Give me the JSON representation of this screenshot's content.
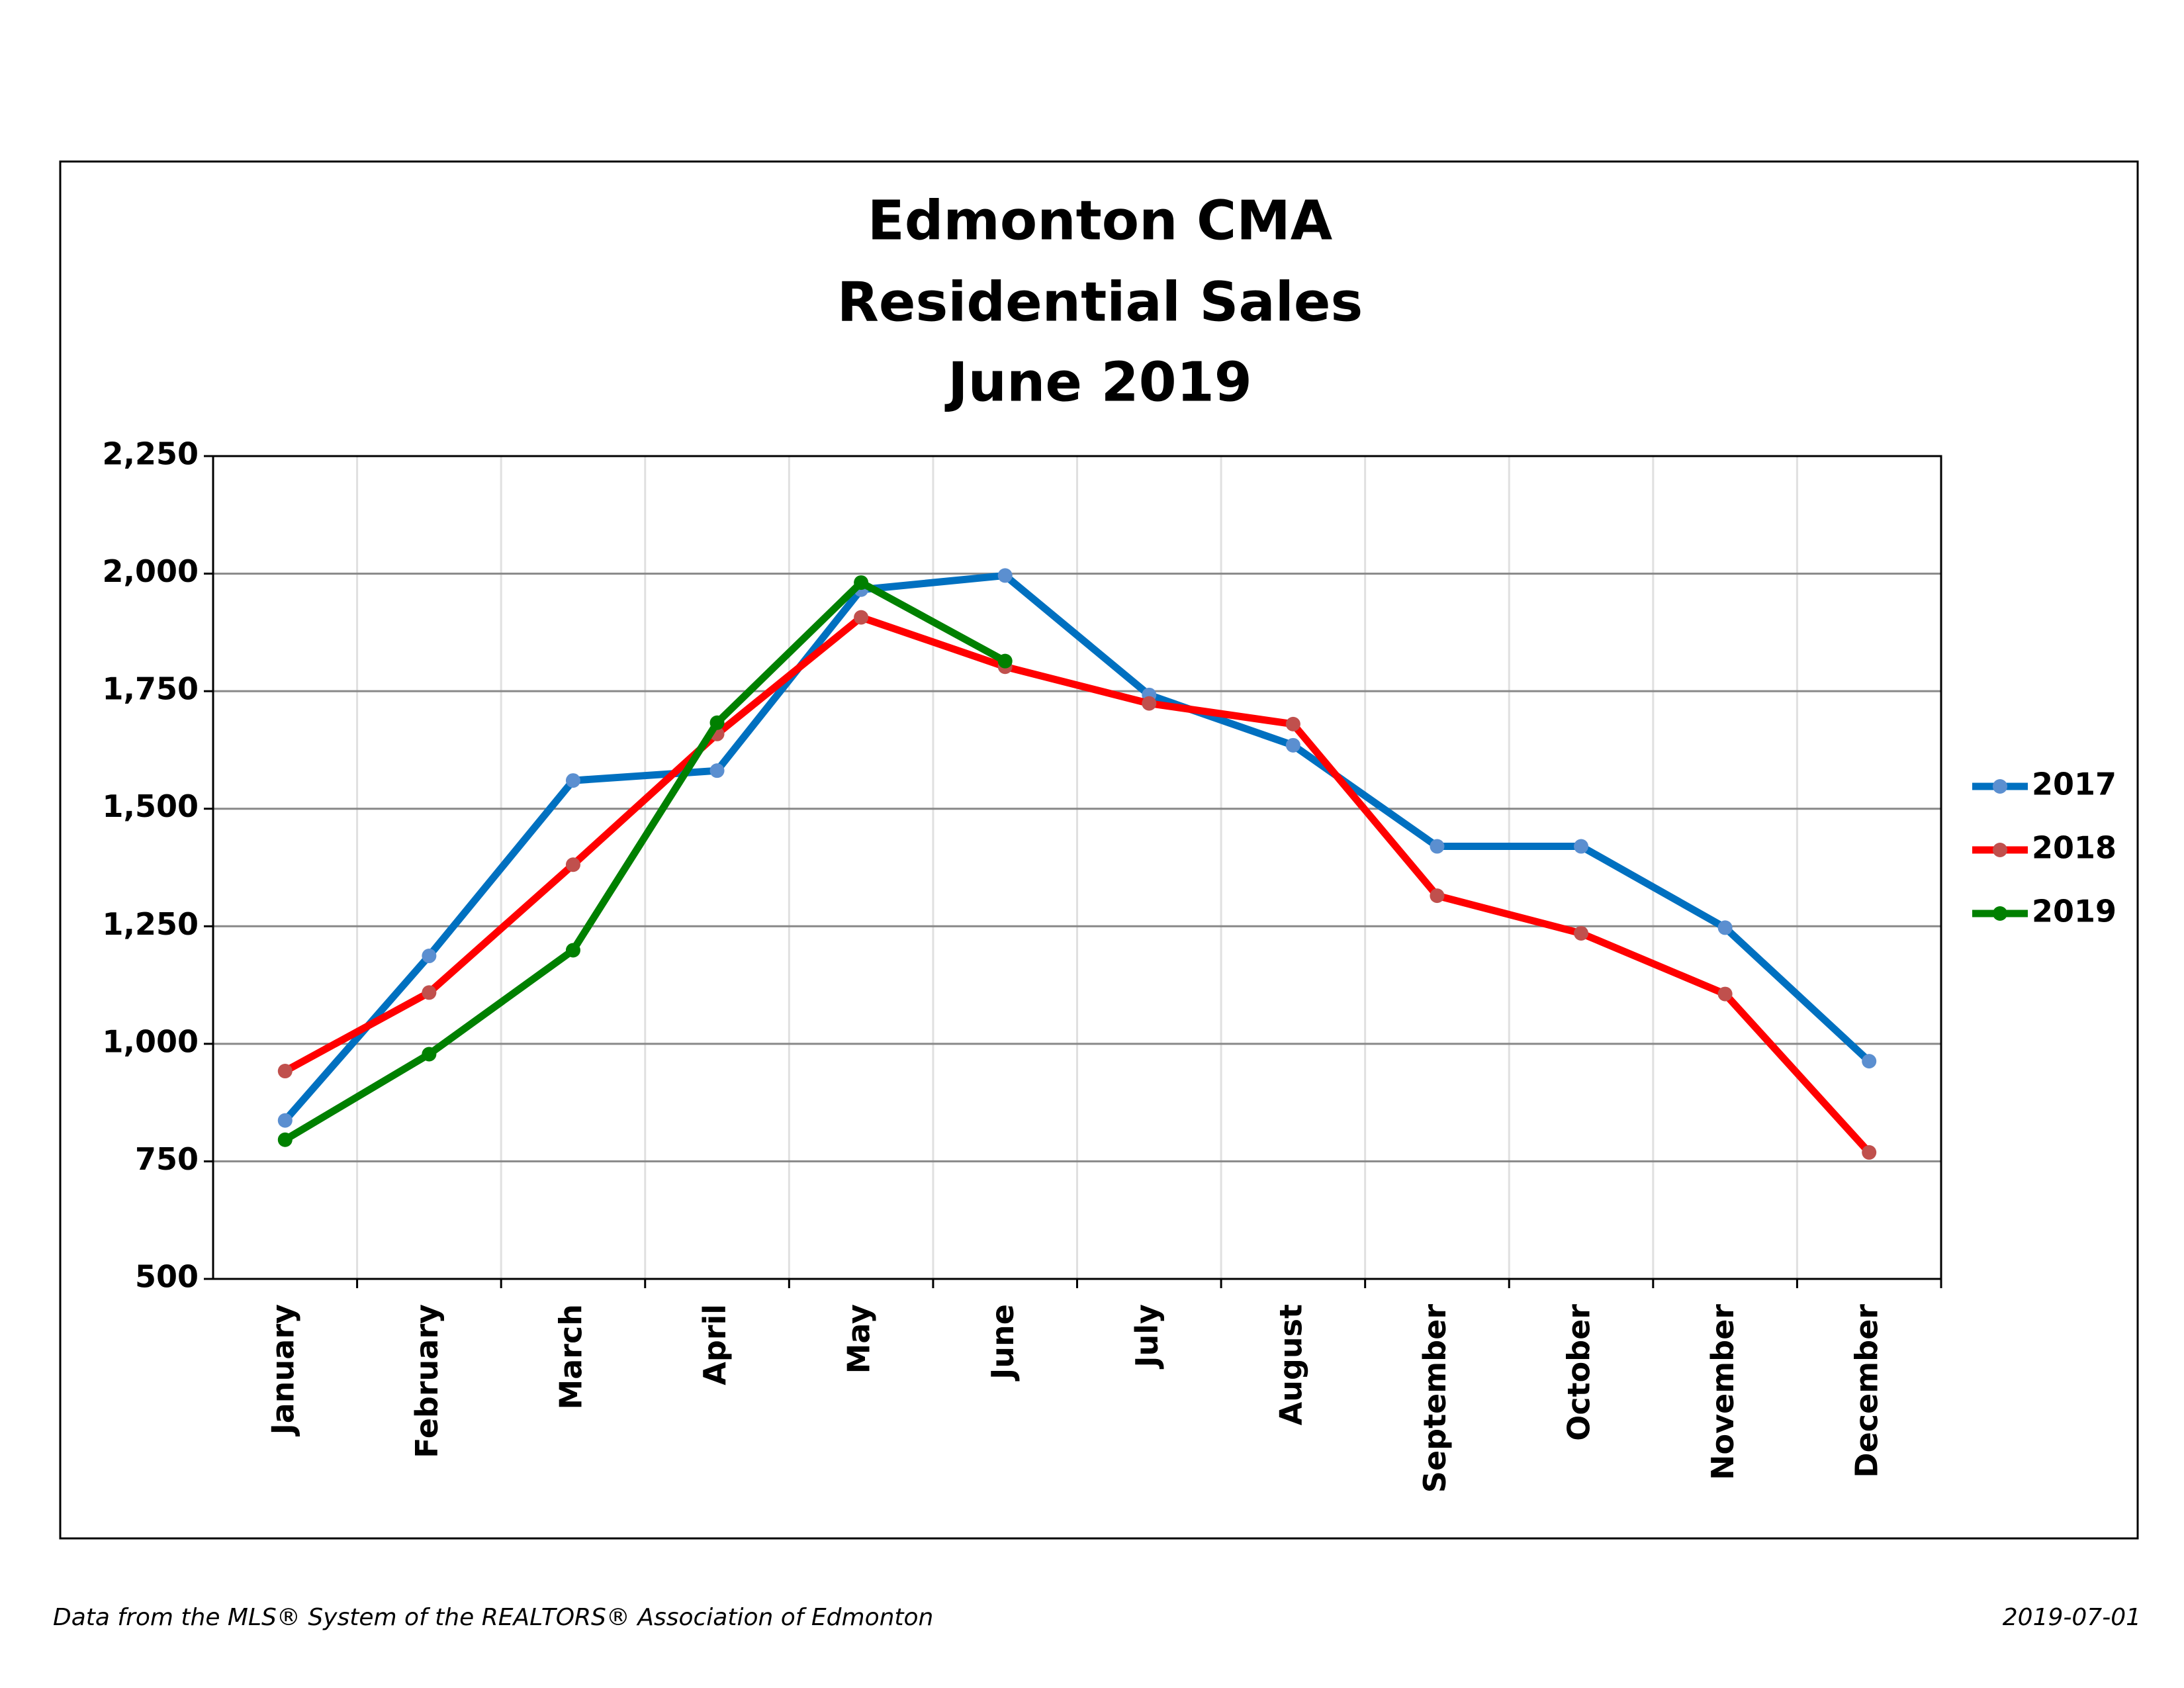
{
  "chart_data": {
    "type": "line",
    "title": [
      "Edmonton CMA",
      "Residential Sales",
      "June 2019"
    ],
    "categories": [
      "January",
      "February",
      "March",
      "April",
      "May",
      "June",
      "July",
      "August",
      "September",
      "October",
      "November",
      "December"
    ],
    "series": [
      {
        "name": "2017",
        "color": "#0070c0",
        "marker_color": "#5b8fd0",
        "values": [
          837,
          1187,
          1560,
          1581,
          1966,
          1996,
          1742,
          1635,
          1420,
          1420,
          1247,
          963
        ]
      },
      {
        "name": "2018",
        "color": "#ff0000",
        "marker_color": "#c0504d",
        "values": [
          942,
          1109,
          1381,
          1659,
          1907,
          1802,
          1724,
          1680,
          1315,
          1235,
          1106,
          769
        ]
      },
      {
        "name": "2019",
        "color": "#008000",
        "marker_color": "#008000",
        "values": [
          796,
          978,
          1199,
          1683,
          1981,
          1814,
          null,
          null,
          null,
          null,
          null,
          null
        ]
      }
    ],
    "ylim": [
      500,
      2250
    ],
    "yticks": [
      500,
      750,
      {
        "value": 1000,
        "label": "1,000"
      },
      {
        "value": 1250,
        "label": "1,250"
      },
      {
        "value": 1500,
        "label": "1,500"
      },
      {
        "value": 1750,
        "label": "1,750"
      },
      {
        "value": 2000,
        "label": "2,000"
      },
      {
        "value": 2250,
        "label": "2,250"
      }
    ],
    "grid": true,
    "legend": "right",
    "source": "Data from the MLS® System of the REALTORS® Association of Edmonton",
    "date": "2019-07-01"
  }
}
